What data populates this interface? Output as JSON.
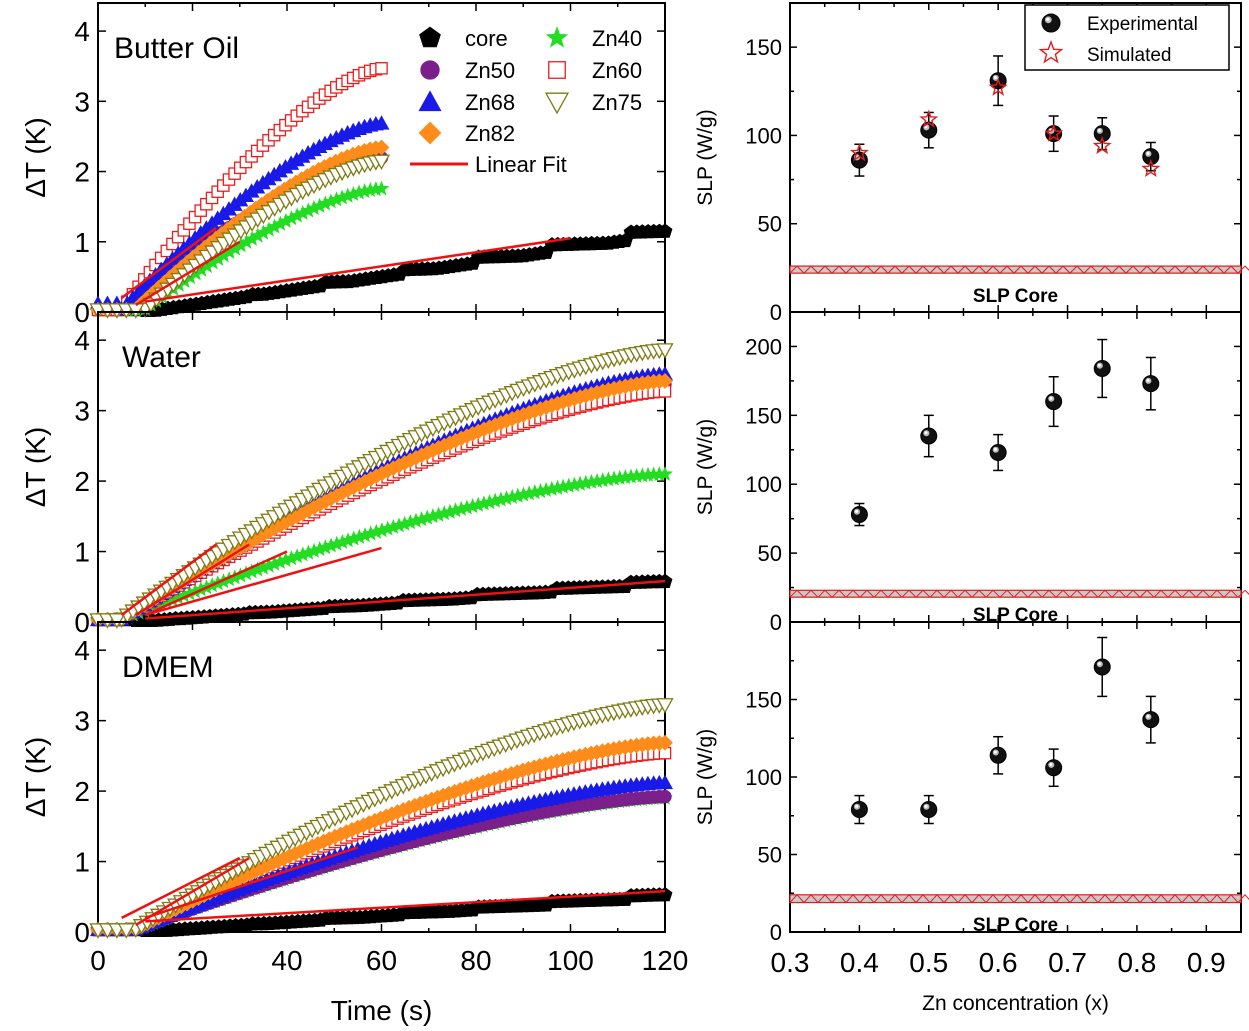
{
  "chart_data": [
    {
      "type": "scatter",
      "panel": "left-top",
      "panel_label": "Butter Oil",
      "xlim": [
        0,
        120
      ],
      "ylim": [
        0,
        4.4
      ],
      "yticks": [
        0,
        1,
        2,
        3,
        4
      ],
      "xlabel": "",
      "ylabel": "ΔT (K)",
      "legend_position": "top-right",
      "legend_entries": [
        "core",
        "Zn40",
        "Zn50",
        "Zn60",
        "Zn68",
        "Zn75",
        "Zn82",
        "Linear Fit"
      ],
      "series": [
        {
          "name": "core",
          "marker": "pentagon",
          "color": "#000000",
          "t_start": 10,
          "t_end": 120,
          "dT_end": 1.22,
          "shape": "linear-stepped"
        },
        {
          "name": "Zn40",
          "marker": "star",
          "color": "#22dd22",
          "t_start": 10,
          "t_end": 60,
          "dT_end": 1.75
        },
        {
          "name": "Zn50",
          "marker": "circle",
          "color": "#7b1f8a",
          "t_start": 5,
          "t_end": 60,
          "dT_end": 2.2
        },
        {
          "name": "Zn60",
          "marker": "open-square",
          "color": "#ee1c1c",
          "t_start": 5,
          "t_end": 60,
          "dT_end": 3.5
        },
        {
          "name": "Zn68",
          "marker": "triangle",
          "color": "#1a1ae8",
          "t_start": 5,
          "t_end": 60,
          "dT_end": 2.7
        },
        {
          "name": "Zn75",
          "marker": "open-triangle-down",
          "color": "#7d7a12",
          "t_start": 10,
          "t_end": 60,
          "dT_end": 2.15
        },
        {
          "name": "Zn82",
          "marker": "diamond",
          "color": "#ff8c1a",
          "t_start": 8,
          "t_end": 60,
          "dT_end": 2.35
        }
      ],
      "fits": [
        {
          "x": [
            10,
            100
          ],
          "y": [
            0.15,
            1.05
          ]
        },
        {
          "x": [
            5,
            25
          ],
          "y": [
            0.2,
            1.2
          ]
        },
        {
          "x": [
            8,
            30
          ],
          "y": [
            0.1,
            1.0
          ]
        }
      ]
    },
    {
      "type": "scatter",
      "panel": "left-middle",
      "panel_label": "Water",
      "xlim": [
        0,
        120
      ],
      "ylim": [
        0,
        4.4
      ],
      "yticks": [
        0,
        1,
        2,
        3,
        4
      ],
      "xlabel": "",
      "ylabel": "ΔT (K)",
      "series": [
        {
          "name": "core",
          "t_start": 8,
          "t_end": 120,
          "dT_end": 0.6,
          "shape": "linear-stepped"
        },
        {
          "name": "Zn40",
          "t_start": 5,
          "t_end": 120,
          "dT_end": 2.1
        },
        {
          "name": "Zn50",
          "t_start": 5,
          "t_end": 120,
          "dT_end": 3.4
        },
        {
          "name": "Zn60",
          "t_start": 5,
          "t_end": 120,
          "dT_end": 3.3
        },
        {
          "name": "Zn68",
          "t_start": 5,
          "t_end": 120,
          "dT_end": 3.55
        },
        {
          "name": "Zn75",
          "t_start": 5,
          "t_end": 120,
          "dT_end": 3.9
        },
        {
          "name": "Zn82",
          "t_start": 5,
          "t_end": 120,
          "dT_end": 3.45
        }
      ],
      "fits": [
        {
          "x": [
            10,
            120
          ],
          "y": [
            0.05,
            0.58
          ]
        },
        {
          "x": [
            10,
            60
          ],
          "y": [
            0.1,
            1.05
          ]
        },
        {
          "x": [
            5,
            25
          ],
          "y": [
            0.1,
            1.1
          ]
        },
        {
          "x": [
            8,
            32
          ],
          "y": [
            0.1,
            1.1
          ]
        },
        {
          "x": [
            10,
            40
          ],
          "y": [
            0.1,
            1.0
          ]
        }
      ]
    },
    {
      "type": "scatter",
      "panel": "left-bottom",
      "panel_label": "DMEM",
      "xlim": [
        0,
        120
      ],
      "ylim": [
        0,
        4.4
      ],
      "yticks": [
        0,
        1,
        2,
        3,
        4
      ],
      "xticks": [
        0,
        20,
        40,
        60,
        80,
        100,
        120
      ],
      "xlabel": "Time (s)",
      "ylabel": "ΔT (K)",
      "series": [
        {
          "name": "core",
          "t_start": 10,
          "t_end": 120,
          "dT_end": 0.55,
          "shape": "linear-stepped"
        },
        {
          "name": "Zn40",
          "t_start": 8,
          "t_end": 120,
          "dT_end": 1.9
        },
        {
          "name": "Zn50",
          "t_start": 8,
          "t_end": 120,
          "dT_end": 1.92
        },
        {
          "name": "Zn60",
          "t_start": 8,
          "t_end": 120,
          "dT_end": 2.55
        },
        {
          "name": "Zn68",
          "t_start": 8,
          "t_end": 120,
          "dT_end": 2.12
        },
        {
          "name": "Zn75",
          "t_start": 8,
          "t_end": 120,
          "dT_end": 3.25
        },
        {
          "name": "Zn82",
          "t_start": 8,
          "t_end": 120,
          "dT_end": 2.7
        }
      ],
      "fits": [
        {
          "x": [
            10,
            120
          ],
          "y": [
            0.15,
            0.58
          ]
        },
        {
          "x": [
            5,
            30
          ],
          "y": [
            0.2,
            1.05
          ]
        },
        {
          "x": [
            8,
            32
          ],
          "y": [
            0.1,
            1.05
          ]
        },
        {
          "x": [
            10,
            55
          ],
          "y": [
            0.2,
            1.2
          ]
        }
      ]
    },
    {
      "type": "scatter",
      "panel": "right-top",
      "xlim": [
        0.3,
        0.95
      ],
      "ylim": [
        0,
        175
      ],
      "yticks": [
        0,
        50,
        100,
        150
      ],
      "xlabel": "",
      "ylabel": "SLP (W/g)",
      "legend_position": "top-right",
      "legend_entries": [
        "Experimental",
        "Simulated"
      ],
      "series": [
        {
          "name": "Experimental",
          "x": [
            0.4,
            0.5,
            0.6,
            0.68,
            0.75,
            0.82
          ],
          "y": [
            86,
            103,
            131,
            101,
            101,
            88
          ],
          "yerr": [
            9,
            10,
            14,
            10,
            9,
            8
          ]
        },
        {
          "name": "Simulated",
          "x": [
            0.4,
            0.5,
            0.6,
            0.68,
            0.75,
            0.82
          ],
          "y": [
            90,
            109,
            127,
            101,
            94,
            81
          ]
        }
      ],
      "core_band": {
        "label": "SLP Core",
        "y": [
          22,
          26
        ]
      }
    },
    {
      "type": "scatter",
      "panel": "right-middle",
      "xlim": [
        0.3,
        0.95
      ],
      "ylim": [
        0,
        225
      ],
      "yticks": [
        0,
        50,
        100,
        150,
        200
      ],
      "xlabel": "",
      "ylabel": "SLP (W/g)",
      "series": [
        {
          "name": "Experimental",
          "x": [
            0.4,
            0.5,
            0.6,
            0.68,
            0.75,
            0.82
          ],
          "y": [
            78,
            135,
            123,
            160,
            184,
            173
          ],
          "yerr": [
            8,
            15,
            13,
            18,
            21,
            19
          ]
        }
      ],
      "core_band": {
        "label": "SLP Core",
        "y": [
          18,
          23
        ]
      }
    },
    {
      "type": "scatter",
      "panel": "right-bottom",
      "xlim": [
        0.3,
        0.95
      ],
      "ylim": [
        0,
        200
      ],
      "yticks": [
        0,
        50,
        100,
        150
      ],
      "xticks": [
        0.3,
        0.4,
        0.5,
        0.6,
        0.7,
        0.8,
        0.9
      ],
      "xlabel": "Zn concentration (x)",
      "ylabel": "SLP (W/g)",
      "series": [
        {
          "name": "Experimental",
          "x": [
            0.4,
            0.5,
            0.6,
            0.68,
            0.75,
            0.82
          ],
          "y": [
            79,
            79,
            114,
            106,
            171,
            137
          ],
          "yerr": [
            9,
            9,
            12,
            12,
            19,
            15
          ]
        }
      ],
      "core_band": {
        "label": "SLP Core",
        "y": [
          19,
          24
        ]
      }
    }
  ]
}
